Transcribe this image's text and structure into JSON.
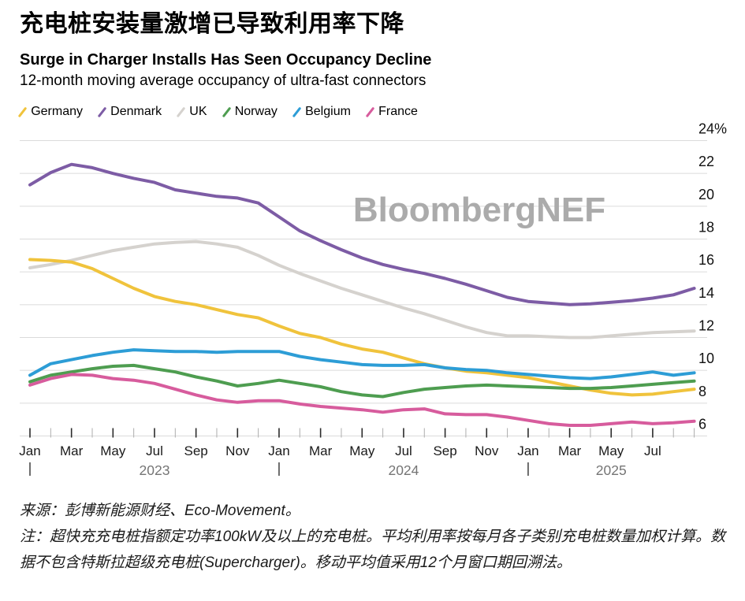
{
  "header": {
    "title_zh": "充电桩安装量激增已导致利用率下降",
    "title_en": "Surge in Charger Installs Has Seen Occupancy Decline",
    "subtitle": "12-month moving average occupancy of ultra-fast connectors"
  },
  "watermark": "BloombergNEF",
  "footer": {
    "source": "来源：彭博新能源财经、Eco-Movement。",
    "note": "注：超快充充电桩指额定功率100kW及以上的充电桩。平均利用率按每月各子类别充电桩数量加权计算。数据不包含特斯拉超级充电桩(Supercharger)。移动平均值采用12个月窗口期回溯法。"
  },
  "chart_data": {
    "type": "line",
    "title": "Surge in Charger Installs Has Seen Occupancy Decline",
    "subtitle": "12-month moving average occupancy of ultra-fast connectors",
    "unit": "%",
    "legend_position": "top",
    "grid": "horizontal",
    "x": [
      "2023-01",
      "2023-02",
      "2023-03",
      "2023-04",
      "2023-05",
      "2023-06",
      "2023-07",
      "2023-08",
      "2023-09",
      "2023-10",
      "2023-11",
      "2023-12",
      "2024-01",
      "2024-02",
      "2024-03",
      "2024-04",
      "2024-05",
      "2024-06",
      "2024-07",
      "2024-08",
      "2024-09",
      "2024-10",
      "2024-11",
      "2024-12",
      "2025-01",
      "2025-02",
      "2025-03",
      "2025-04",
      "2025-05",
      "2025-06",
      "2025-07",
      "2025-08",
      "2025-09"
    ],
    "x_tick_labels": [
      "Jan",
      "",
      "Mar",
      "",
      "May",
      "",
      "Jul",
      "",
      "Sep",
      "",
      "Nov",
      "",
      "Jan",
      "",
      "Mar",
      "",
      "May",
      "",
      "Jul",
      "",
      "Sep",
      "",
      "Nov",
      "",
      "Jan",
      "",
      "Mar",
      "",
      "May",
      "",
      "Jul",
      "",
      ""
    ],
    "years": [
      {
        "label": "2023",
        "start_index": 0
      },
      {
        "label": "2024",
        "start_index": 12
      },
      {
        "label": "2025",
        "start_index": 24
      }
    ],
    "y_axis": {
      "min": 5.2,
      "max": 24.8,
      "ticks": [
        {
          "v": 24,
          "label": "24%"
        },
        {
          "v": 22,
          "label": "22"
        },
        {
          "v": 20,
          "label": "20"
        },
        {
          "v": 18,
          "label": "18"
        },
        {
          "v": 16,
          "label": "16"
        },
        {
          "v": 14,
          "label": "14"
        },
        {
          "v": 12,
          "label": "12"
        },
        {
          "v": 10,
          "label": "10"
        },
        {
          "v": 8,
          "label": "8"
        },
        {
          "v": 6,
          "label": "6"
        }
      ]
    },
    "series": [
      {
        "name": "UK",
        "color": "#D5D2CE",
        "values": [
          16.25,
          16.45,
          16.7,
          17.0,
          17.3,
          17.5,
          17.7,
          17.8,
          17.85,
          17.7,
          17.5,
          17.0,
          16.4,
          15.9,
          15.45,
          15.0,
          14.6,
          14.2,
          13.8,
          13.45,
          13.05,
          12.65,
          12.3,
          12.1,
          12.1,
          12.05,
          12.0,
          12.0,
          12.1,
          12.2,
          12.3,
          12.35,
          12.4
        ]
      },
      {
        "name": "Denmark",
        "color": "#7D5CA5",
        "values": [
          21.3,
          22.05,
          22.55,
          22.35,
          22.0,
          21.7,
          21.45,
          21.0,
          20.8,
          20.6,
          20.5,
          20.2,
          19.35,
          18.5,
          17.9,
          17.35,
          16.85,
          16.45,
          16.15,
          15.9,
          15.6,
          15.25,
          14.85,
          14.45,
          14.2,
          14.1,
          14.0,
          14.05,
          14.15,
          14.25,
          14.4,
          14.6,
          15.0
        ]
      },
      {
        "name": "Germany",
        "color": "#F0C33C",
        "values": [
          16.75,
          16.7,
          16.6,
          16.2,
          15.6,
          15.0,
          14.5,
          14.2,
          14.0,
          13.7,
          13.4,
          13.2,
          12.7,
          12.25,
          12.0,
          11.6,
          11.3,
          11.1,
          10.75,
          10.4,
          10.15,
          9.95,
          9.85,
          9.7,
          9.55,
          9.3,
          9.05,
          8.8,
          8.6,
          8.5,
          8.55,
          8.7,
          8.85
        ]
      },
      {
        "name": "Norway",
        "color": "#4E9D50",
        "values": [
          9.3,
          9.7,
          9.9,
          10.1,
          10.25,
          10.3,
          10.1,
          9.9,
          9.6,
          9.35,
          9.05,
          9.2,
          9.4,
          9.2,
          9.0,
          8.7,
          8.5,
          8.4,
          8.65,
          8.85,
          8.95,
          9.05,
          9.1,
          9.05,
          9.0,
          8.95,
          8.9,
          8.9,
          8.95,
          9.05,
          9.15,
          9.25,
          9.35
        ]
      },
      {
        "name": "Belgium",
        "color": "#2D9DD6",
        "values": [
          9.7,
          10.4,
          10.65,
          10.9,
          11.1,
          11.25,
          11.2,
          11.15,
          11.15,
          11.1,
          11.15,
          11.15,
          11.15,
          10.85,
          10.65,
          10.5,
          10.35,
          10.3,
          10.3,
          10.35,
          10.15,
          10.05,
          10.0,
          9.85,
          9.75,
          9.65,
          9.55,
          9.5,
          9.6,
          9.75,
          9.9,
          9.7,
          9.85
        ]
      },
      {
        "name": "France",
        "color": "#D75C9D",
        "values": [
          9.1,
          9.5,
          9.75,
          9.7,
          9.5,
          9.4,
          9.2,
          8.85,
          8.5,
          8.2,
          8.05,
          8.15,
          8.15,
          7.95,
          7.8,
          7.7,
          7.6,
          7.45,
          7.6,
          7.65,
          7.35,
          7.3,
          7.3,
          7.15,
          6.95,
          6.75,
          6.65,
          6.65,
          6.75,
          6.85,
          6.75,
          6.8,
          6.9
        ]
      }
    ],
    "legend_order": [
      "Germany",
      "Denmark",
      "UK",
      "Norway",
      "Belgium",
      "France"
    ]
  },
  "style": {
    "gridline_color": "#DBDBDB",
    "watermark_color": "#ABABAB",
    "axis_label_color": "#111111",
    "month_label_color": "#1a1a1a",
    "minor_tick_color": "#ADADAD",
    "major_tick_color": "#2b2b2b",
    "year_text_color": "#757575",
    "year_bar_color": "#4a4a4a"
  }
}
